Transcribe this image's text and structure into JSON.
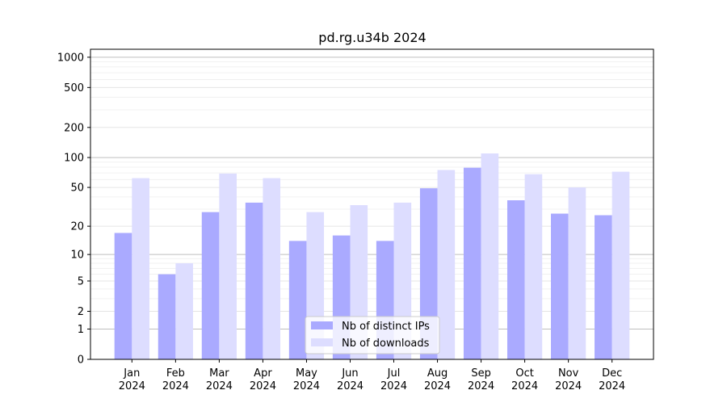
{
  "chart_data": {
    "type": "bar",
    "title": "pd.rg.u34b 2024",
    "xlabel": "",
    "ylabel": "",
    "y_scale": "symlog",
    "ylim": [
      0,
      1200
    ],
    "y_ticks": [
      0,
      1,
      2,
      5,
      10,
      20,
      50,
      100,
      200,
      500,
      1000
    ],
    "y_tick_labels": [
      "0",
      "1",
      "2",
      "5",
      "10",
      "20",
      "50",
      "100",
      "200",
      "500",
      "1000"
    ],
    "grid": true,
    "legend_position": "bottom-center",
    "categories": [
      {
        "month": "Jan",
        "year": "2024"
      },
      {
        "month": "Feb",
        "year": "2024"
      },
      {
        "month": "Mar",
        "year": "2024"
      },
      {
        "month": "Apr",
        "year": "2024"
      },
      {
        "month": "May",
        "year": "2024"
      },
      {
        "month": "Jun",
        "year": "2024"
      },
      {
        "month": "Jul",
        "year": "2024"
      },
      {
        "month": "Aug",
        "year": "2024"
      },
      {
        "month": "Sep",
        "year": "2024"
      },
      {
        "month": "Oct",
        "year": "2024"
      },
      {
        "month": "Nov",
        "year": "2024"
      },
      {
        "month": "Dec",
        "year": "2024"
      }
    ],
    "series": [
      {
        "name": "Nb of distinct IPs",
        "color": "#aaaaff",
        "values": [
          17,
          6,
          28,
          35,
          14,
          16,
          14,
          49,
          79,
          37,
          27,
          26
        ]
      },
      {
        "name": "Nb of downloads",
        "color": "#ddddff",
        "values": [
          62,
          8,
          69,
          62,
          28,
          33,
          35,
          75,
          110,
          68,
          50,
          72
        ]
      }
    ]
  }
}
